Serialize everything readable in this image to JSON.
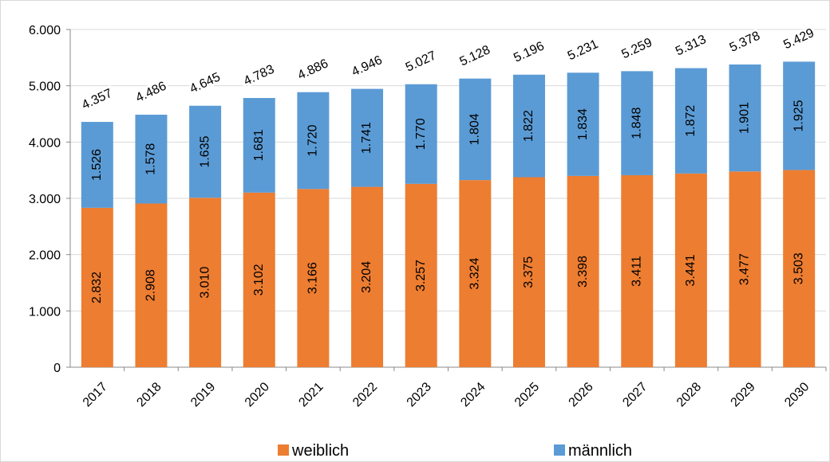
{
  "chart_data": {
    "type": "stacked_bar",
    "categories": [
      "2017",
      "2018",
      "2019",
      "2020",
      "2021",
      "2022",
      "2023",
      "2024",
      "2025",
      "2026",
      "2027",
      "2028",
      "2029",
      "2030"
    ],
    "series": [
      {
        "name": "weiblich",
        "color": "#ed7d31",
        "values": [
          2832,
          2908,
          3010,
          3102,
          3166,
          3204,
          3257,
          3324,
          3375,
          3398,
          3411,
          3441,
          3477,
          3503
        ],
        "value_labels": [
          "2.832",
          "2.908",
          "3.010",
          "3.102",
          "3.166",
          "3.204",
          "3.257",
          "3.324",
          "3.375",
          "3.398",
          "3.411",
          "3.441",
          "3.477",
          "3.503"
        ]
      },
      {
        "name": "männlich",
        "color": "#5b9bd5",
        "values": [
          1526,
          1578,
          1635,
          1681,
          1720,
          1741,
          1770,
          1804,
          1822,
          1834,
          1848,
          1872,
          1901,
          1925
        ],
        "value_labels": [
          "1.526",
          "1.578",
          "1.635",
          "1.681",
          "1.720",
          "1.741",
          "1.770",
          "1.804",
          "1.822",
          "1.834",
          "1.848",
          "1.872",
          "1.901",
          "1.925"
        ]
      }
    ],
    "totals": {
      "values": [
        4357,
        4486,
        4645,
        4783,
        4886,
        4946,
        5027,
        5128,
        5196,
        5231,
        5259,
        5313,
        5378,
        5429
      ],
      "value_labels": [
        "4.357",
        "4.486",
        "4.645",
        "4.783",
        "4.886",
        "4.946",
        "5.027",
        "5.128",
        "5.196",
        "5.231",
        "5.259",
        "5.313",
        "5.378",
        "5.429"
      ]
    },
    "ylim": [
      0,
      6000
    ],
    "yticks": [
      0,
      {
        "value": 1000,
        "label": "1.000"
      },
      {
        "value": 2000,
        "label": "2.000"
      },
      {
        "value": 3000,
        "label": "3.000"
      },
      {
        "value": 4000,
        "label": "4.000"
      },
      {
        "value": 5000,
        "label": "5.000"
      },
      {
        "value": 6000,
        "label": "6.000"
      }
    ],
    "grid": true
  }
}
